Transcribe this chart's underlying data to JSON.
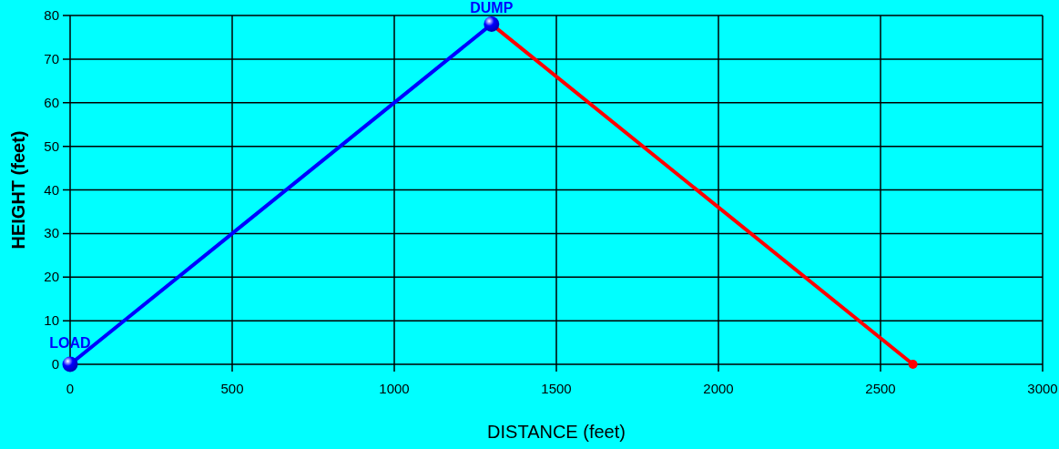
{
  "chart_data": {
    "type": "line",
    "xlabel": "DISTANCE (feet)",
    "ylabel": "HEIGHT (feet)",
    "xlim": [
      0,
      3000
    ],
    "xticks": [
      0,
      500,
      1000,
      1500,
      2000,
      2500,
      3000
    ],
    "ylim": [
      0,
      80
    ],
    "yticks": [
      0,
      10,
      20,
      30,
      40,
      50,
      60,
      70,
      80
    ],
    "grid": true,
    "series": [
      {
        "color": "#ff0000",
        "x": [
          1300,
          2600
        ],
        "values": [
          78,
          0
        ],
        "marker": "circle"
      },
      {
        "color": "#0000ff",
        "x": [
          0,
          1300
        ],
        "values": [
          0,
          78
        ],
        "marker": "circle"
      }
    ],
    "annotations": [
      {
        "text": "LOAD",
        "x": 0,
        "y": 0
      },
      {
        "text": "DUMP",
        "x": 1300,
        "y": 78
      }
    ]
  }
}
